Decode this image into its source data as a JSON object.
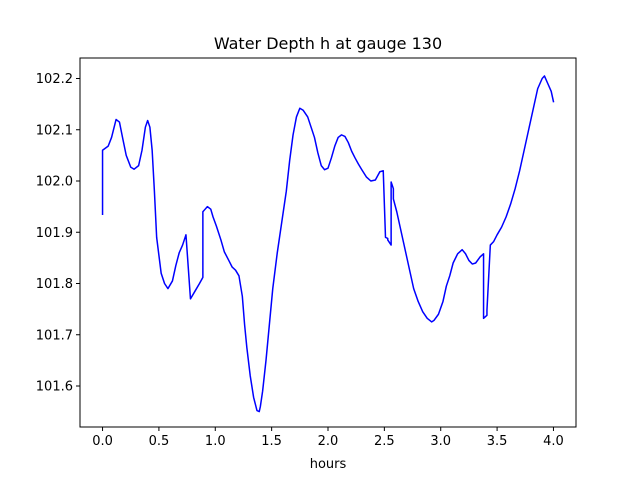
{
  "chart_data": {
    "type": "line",
    "title": "Water Depth h at gauge 130",
    "xlabel": "hours",
    "ylabel": "",
    "xlim": [
      -0.2,
      4.2
    ],
    "ylim": [
      101.52,
      102.24
    ],
    "x_ticks": [
      0.0,
      0.5,
      1.0,
      1.5,
      2.0,
      2.5,
      3.0,
      3.5,
      4.0
    ],
    "x_tick_labels": [
      "0.0",
      "0.5",
      "1.0",
      "1.5",
      "2.0",
      "2.5",
      "3.0",
      "3.5",
      "4.0"
    ],
    "y_ticks": [
      101.6,
      101.7,
      101.8,
      101.9,
      102.0,
      102.1,
      102.2
    ],
    "y_tick_labels": [
      "101.6",
      "101.7",
      "101.8",
      "101.9",
      "102.0",
      "102.1",
      "102.2"
    ],
    "grid": false,
    "series": [
      {
        "color": "#0000ff",
        "x": [
          0.0,
          0.0,
          0.05,
          0.08,
          0.12,
          0.15,
          0.18,
          0.21,
          0.25,
          0.28,
          0.32,
          0.35,
          0.38,
          0.4,
          0.42,
          0.44,
          0.46,
          0.48,
          0.52,
          0.55,
          0.58,
          0.62,
          0.65,
          0.68,
          0.71,
          0.74,
          0.78,
          0.78,
          0.82,
          0.86,
          0.89,
          0.89,
          0.91,
          0.93,
          0.96,
          0.98,
          1.01,
          1.05,
          1.08,
          1.12,
          1.15,
          1.18,
          1.21,
          1.24,
          1.26,
          1.28,
          1.31,
          1.34,
          1.37,
          1.39,
          1.4,
          1.42,
          1.45,
          1.48,
          1.51,
          1.55,
          1.59,
          1.63,
          1.66,
          1.69,
          1.72,
          1.75,
          1.78,
          1.82,
          1.85,
          1.88,
          1.91,
          1.94,
          1.97,
          2.0,
          2.03,
          2.06,
          2.09,
          2.12,
          2.15,
          2.18,
          2.21,
          2.24,
          2.27,
          2.3,
          2.34,
          2.38,
          2.42,
          2.46,
          2.49,
          2.51,
          2.53,
          2.53,
          2.56,
          2.56,
          2.58,
          2.58,
          2.61,
          2.64,
          2.67,
          2.7,
          2.73,
          2.76,
          2.8,
          2.84,
          2.88,
          2.92,
          2.94,
          2.98,
          3.02,
          3.05,
          3.08,
          3.11,
          3.15,
          3.19,
          3.22,
          3.25,
          3.28,
          3.31,
          3.35,
          3.38,
          3.38,
          3.41,
          3.41,
          3.44,
          3.47,
          3.5,
          3.54,
          3.58,
          3.62,
          3.66,
          3.7,
          3.74,
          3.78,
          3.82,
          3.86,
          3.9,
          3.92,
          3.95,
          3.98,
          4.0
        ],
        "y": [
          101.935,
          102.06,
          102.068,
          102.085,
          102.12,
          102.115,
          102.082,
          102.05,
          102.027,
          102.023,
          102.03,
          102.06,
          102.105,
          102.118,
          102.105,
          102.06,
          101.98,
          101.89,
          101.82,
          101.8,
          101.79,
          101.805,
          101.835,
          101.86,
          101.875,
          101.895,
          101.77,
          101.77,
          101.785,
          101.8,
          101.812,
          101.94,
          101.945,
          101.95,
          101.945,
          101.93,
          101.912,
          101.885,
          101.862,
          101.845,
          101.832,
          101.826,
          101.815,
          101.775,
          101.72,
          101.675,
          101.62,
          101.578,
          101.552,
          101.55,
          101.56,
          101.59,
          101.65,
          101.72,
          101.79,
          101.86,
          101.92,
          101.98,
          102.04,
          102.09,
          102.125,
          102.142,
          102.138,
          102.125,
          102.105,
          102.085,
          102.055,
          102.03,
          102.022,
          102.025,
          102.045,
          102.068,
          102.085,
          102.09,
          102.087,
          102.075,
          102.058,
          102.045,
          102.033,
          102.022,
          102.008,
          102.0,
          102.002,
          102.018,
          102.02,
          101.89,
          101.888,
          101.885,
          101.875,
          101.998,
          101.985,
          101.965,
          101.94,
          101.91,
          101.88,
          101.85,
          101.82,
          101.79,
          101.765,
          101.745,
          101.732,
          101.725,
          101.728,
          101.74,
          101.765,
          101.795,
          101.815,
          101.84,
          101.858,
          101.866,
          101.858,
          101.845,
          101.838,
          101.84,
          101.852,
          101.858,
          101.732,
          101.738,
          101.748,
          101.875,
          101.882,
          101.895,
          101.91,
          101.93,
          101.955,
          101.985,
          102.02,
          102.06,
          102.1,
          102.14,
          102.18,
          102.2,
          102.205,
          102.19,
          102.175,
          102.155
        ]
      }
    ]
  }
}
